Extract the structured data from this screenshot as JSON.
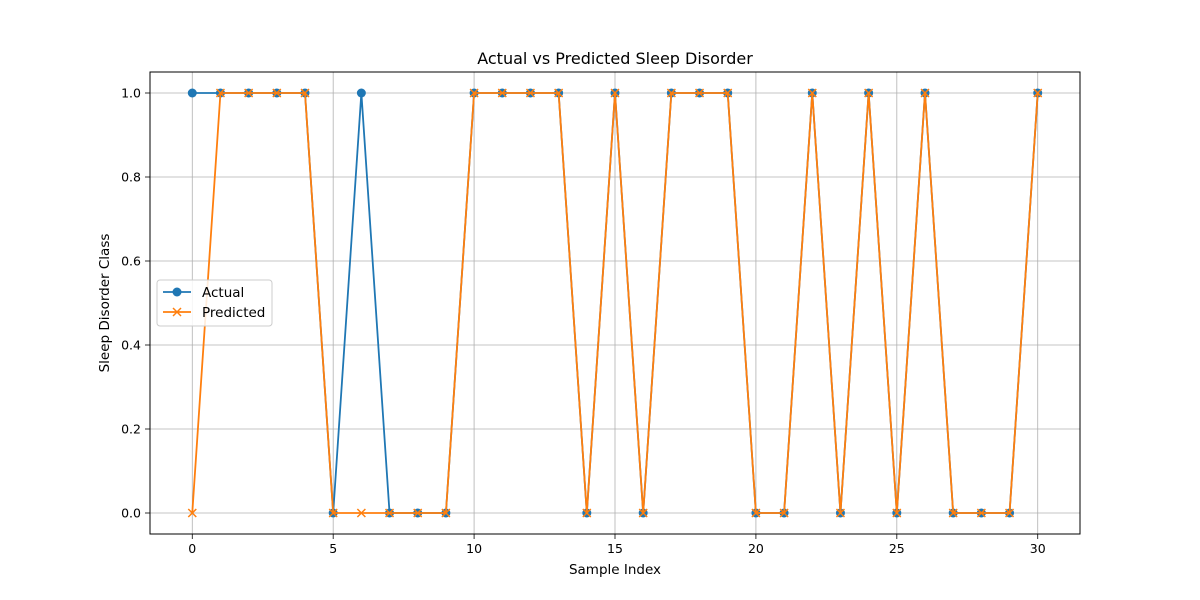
{
  "chart_data": {
    "type": "line",
    "title": "Actual vs Predicted Sleep Disorder",
    "xlabel": "Sample Index",
    "ylabel": "Sleep Disorder Class",
    "xlim": [
      -1.5,
      31.5
    ],
    "ylim": [
      -0.05,
      1.05
    ],
    "xticks": [
      0,
      5,
      10,
      15,
      20,
      25,
      30
    ],
    "yticks": [
      0.0,
      0.2,
      0.4,
      0.6,
      0.8,
      1.0
    ],
    "xtick_labels": [
      "0",
      "5",
      "10",
      "15",
      "20",
      "25",
      "30"
    ],
    "ytick_labels": [
      "0.0",
      "0.2",
      "0.4",
      "0.6",
      "0.8",
      "1.0"
    ],
    "grid": true,
    "legend_position": "center-left",
    "x": [
      0,
      1,
      2,
      3,
      4,
      5,
      6,
      7,
      8,
      9,
      10,
      11,
      12,
      13,
      14,
      15,
      16,
      17,
      18,
      19,
      20,
      21,
      22,
      23,
      24,
      25,
      26,
      27,
      28,
      29,
      30
    ],
    "series": [
      {
        "name": "Actual",
        "marker": "circle",
        "color": "#1f77b4",
        "values": [
          1,
          1,
          1,
          1,
          1,
          0,
          1,
          0,
          0,
          0,
          1,
          1,
          1,
          1,
          0,
          1,
          0,
          1,
          1,
          1,
          0,
          0,
          1,
          0,
          1,
          0,
          1,
          0,
          0,
          0,
          1
        ]
      },
      {
        "name": "Predicted",
        "marker": "x",
        "color": "#ff7f0e",
        "values": [
          0,
          1,
          1,
          1,
          1,
          0,
          0,
          0,
          0,
          0,
          1,
          1,
          1,
          1,
          0,
          1,
          0,
          1,
          1,
          1,
          0,
          0,
          1,
          0,
          1,
          0,
          1,
          0,
          0,
          0,
          1
        ]
      }
    ]
  }
}
